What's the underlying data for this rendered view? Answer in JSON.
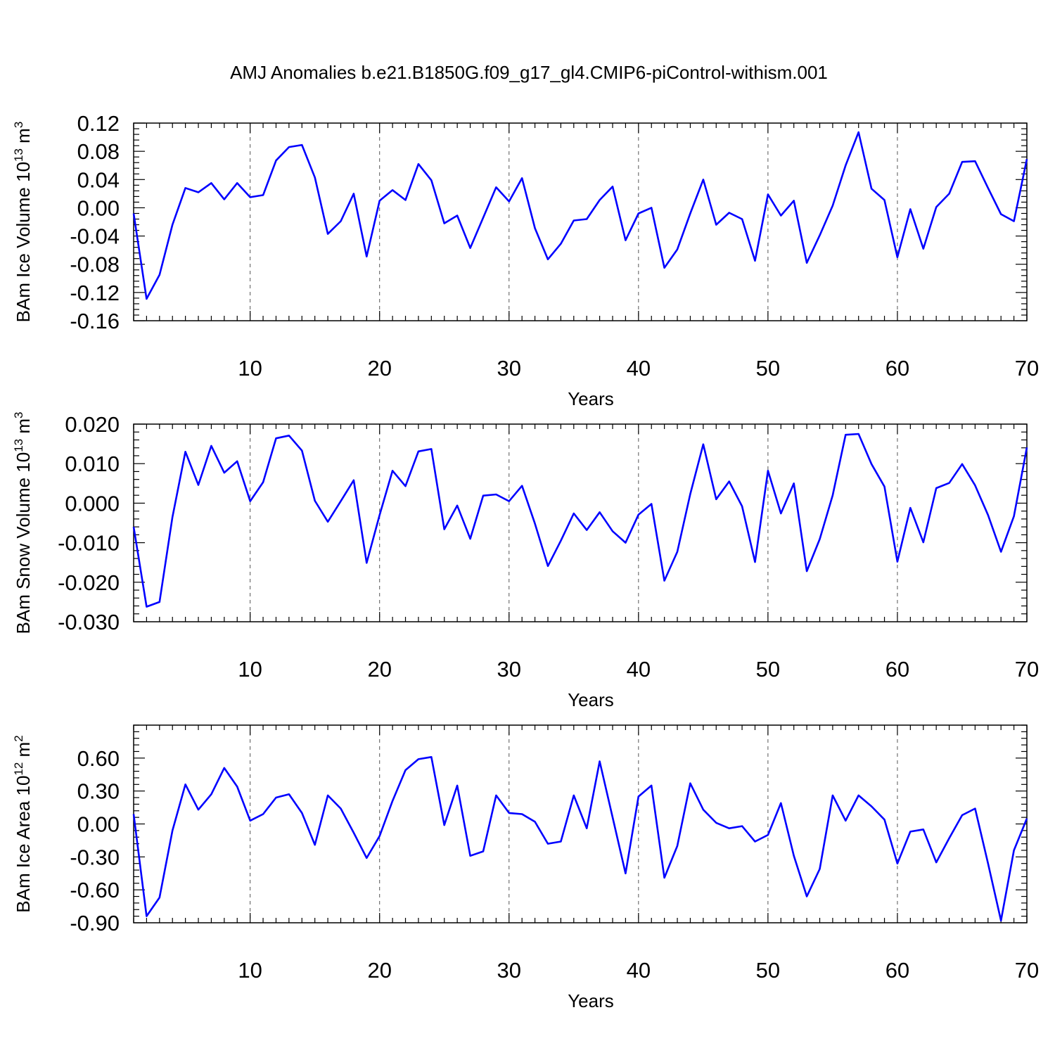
{
  "title": "AMJ Anomalies b.e21.B1850G.f09_g17_gl4.CMIP6-piControl-withism.001",
  "colors": {
    "line": "#0000ff",
    "axis": "#000000",
    "grid": "#555555"
  },
  "chart_data": [
    {
      "type": "line",
      "title": "",
      "xlabel": "Years",
      "ylabel": "BAm Ice Volume 10",
      "ylabel_exponent": "13",
      "ylabel_unit": "m",
      "ylabel_unit_exponent": "3",
      "xlim": [
        1,
        70
      ],
      "ylim": [
        -0.16,
        0.12
      ],
      "x_ticks": [
        10,
        20,
        30,
        40,
        50,
        60,
        70
      ],
      "x_tick_labels": [
        "10",
        "20",
        "30",
        "40",
        "50",
        "60",
        "70"
      ],
      "y_ticks": [
        -0.16,
        -0.12,
        -0.08,
        -0.04,
        0.0,
        0.04,
        0.08,
        0.12
      ],
      "y_tick_labels": [
        "-0.16",
        "-0.12",
        "-0.08",
        "-0.04",
        "0.00",
        "0.04",
        "0.08",
        "0.12"
      ],
      "grid": "vertical dashed at major x ticks",
      "x": [
        1,
        2,
        3,
        4,
        5,
        6,
        7,
        8,
        9,
        10,
        11,
        12,
        13,
        14,
        15,
        16,
        17,
        18,
        19,
        20,
        21,
        22,
        23,
        24,
        25,
        26,
        27,
        28,
        29,
        30,
        31,
        32,
        33,
        34,
        35,
        36,
        37,
        38,
        39,
        40,
        41,
        42,
        43,
        44,
        45,
        46,
        47,
        48,
        49,
        50,
        51,
        52,
        53,
        54,
        55,
        56,
        57,
        58,
        59,
        60,
        61,
        62,
        63,
        64,
        65,
        66,
        67,
        68,
        69,
        70
      ],
      "series": [
        {
          "values": [
            -0.008,
            -0.129,
            -0.095,
            -0.024,
            0.028,
            0.022,
            0.035,
            0.012,
            0.035,
            0.015,
            0.018,
            0.067,
            0.086,
            0.089,
            0.043,
            -0.037,
            -0.019,
            0.02,
            -0.069,
            0.01,
            0.025,
            0.011,
            0.062,
            0.039,
            -0.022,
            -0.011,
            -0.057,
            -0.014,
            0.029,
            0.009,
            0.042,
            -0.029,
            -0.073,
            -0.051,
            -0.018,
            -0.016,
            0.011,
            0.03,
            -0.046,
            -0.008,
            0.0,
            -0.085,
            -0.059,
            -0.008,
            0.04,
            -0.024,
            -0.007,
            -0.016,
            -0.075,
            0.019,
            -0.011,
            0.01,
            -0.078,
            -0.039,
            0.003,
            0.06,
            0.107,
            0.027,
            0.011,
            -0.07,
            -0.002,
            -0.058,
            0.001,
            0.02,
            0.065,
            0.066,
            0.028,
            -0.009,
            -0.019,
            0.069
          ]
        }
      ]
    },
    {
      "type": "line",
      "title": "",
      "xlabel": "Years",
      "ylabel": "BAm Snow Volume 10",
      "ylabel_exponent": "13",
      "ylabel_unit": "m",
      "ylabel_unit_exponent": "3",
      "xlim": [
        1,
        70
      ],
      "ylim": [
        -0.03,
        0.02
      ],
      "x_ticks": [
        10,
        20,
        30,
        40,
        50,
        60,
        70
      ],
      "x_tick_labels": [
        "10",
        "20",
        "30",
        "40",
        "50",
        "60",
        "70"
      ],
      "y_ticks": [
        -0.03,
        -0.02,
        -0.01,
        0.0,
        0.01,
        0.02
      ],
      "y_tick_labels": [
        "-0.030",
        "-0.020",
        "-0.010",
        "0.000",
        "0.010",
        "0.020"
      ],
      "grid": "vertical dashed at major x ticks",
      "x": [
        1,
        2,
        3,
        4,
        5,
        6,
        7,
        8,
        9,
        10,
        11,
        12,
        13,
        14,
        15,
        16,
        17,
        18,
        19,
        20,
        21,
        22,
        23,
        24,
        25,
        26,
        27,
        28,
        29,
        30,
        31,
        32,
        33,
        34,
        35,
        36,
        37,
        38,
        39,
        40,
        41,
        42,
        43,
        44,
        45,
        46,
        47,
        48,
        49,
        50,
        51,
        52,
        53,
        54,
        55,
        56,
        57,
        58,
        59,
        60,
        61,
        62,
        63,
        64,
        65,
        66,
        67,
        68,
        69,
        70
      ],
      "series": [
        {
          "values": [
            -0.006,
            -0.0262,
            -0.025,
            -0.0035,
            0.013,
            0.0046,
            0.0145,
            0.0077,
            0.0106,
            0.0005,
            0.0053,
            0.0164,
            0.0171,
            0.0133,
            0.0006,
            -0.0047,
            0.0005,
            0.0058,
            -0.0151,
            -0.003,
            0.0082,
            0.0043,
            0.0131,
            0.0137,
            -0.0066,
            -0.0006,
            -0.009,
            0.0019,
            0.0022,
            0.0005,
            0.0044,
            -0.0052,
            -0.0159,
            -0.0095,
            -0.0026,
            -0.0068,
            -0.0023,
            -0.0071,
            -0.01,
            -0.0029,
            -0.0002,
            -0.0196,
            -0.0123,
            0.0023,
            0.0149,
            0.001,
            0.0055,
            -0.0008,
            -0.0149,
            0.0082,
            -0.0026,
            0.005,
            -0.0172,
            -0.0091,
            0.002,
            0.0173,
            0.0175,
            0.0099,
            0.0042,
            -0.0148,
            -0.0012,
            -0.0099,
            0.0038,
            0.0051,
            0.0099,
            0.0045,
            -0.003,
            -0.0123,
            -0.0033,
            0.0141
          ]
        }
      ]
    },
    {
      "type": "line",
      "title": "",
      "xlabel": "Years",
      "ylabel": "BAm Ice Area 10",
      "ylabel_exponent": "12",
      "ylabel_unit": "m",
      "ylabel_unit_exponent": "2",
      "xlim": [
        1,
        70
      ],
      "ylim": [
        -0.9,
        0.9
      ],
      "x_ticks": [
        10,
        20,
        30,
        40,
        50,
        60,
        70
      ],
      "x_tick_labels": [
        "10",
        "20",
        "30",
        "40",
        "50",
        "60",
        "70"
      ],
      "y_ticks": [
        -0.9,
        -0.6,
        -0.3,
        0.0,
        0.3,
        0.6
      ],
      "y_tick_labels": [
        "-0.90",
        "-0.60",
        "-0.30",
        "0.00",
        "0.30",
        "0.60"
      ],
      "grid": "vertical dashed at major x ticks",
      "x": [
        1,
        2,
        3,
        4,
        5,
        6,
        7,
        8,
        9,
        10,
        11,
        12,
        13,
        14,
        15,
        16,
        17,
        18,
        19,
        20,
        21,
        22,
        23,
        24,
        25,
        26,
        27,
        28,
        29,
        30,
        31,
        32,
        33,
        34,
        35,
        36,
        37,
        38,
        39,
        40,
        41,
        42,
        43,
        44,
        45,
        46,
        47,
        48,
        49,
        50,
        51,
        52,
        53,
        54,
        55,
        56,
        57,
        58,
        59,
        60,
        61,
        62,
        63,
        64,
        65,
        66,
        67,
        68,
        69,
        70
      ],
      "series": [
        {
          "values": [
            0.09,
            -0.84,
            -0.67,
            -0.06,
            0.36,
            0.13,
            0.27,
            0.51,
            0.34,
            0.03,
            0.09,
            0.24,
            0.27,
            0.1,
            -0.19,
            0.26,
            0.14,
            -0.08,
            -0.31,
            -0.11,
            0.21,
            0.49,
            0.59,
            0.61,
            -0.01,
            0.35,
            -0.29,
            -0.25,
            0.26,
            0.1,
            0.09,
            0.02,
            -0.18,
            -0.16,
            0.26,
            -0.04,
            0.57,
            0.06,
            -0.45,
            0.25,
            0.35,
            -0.49,
            -0.2,
            0.37,
            0.13,
            0.01,
            -0.04,
            -0.02,
            -0.16,
            -0.1,
            0.19,
            -0.29,
            -0.66,
            -0.41,
            0.26,
            0.03,
            0.26,
            0.16,
            0.04,
            -0.36,
            -0.07,
            -0.05,
            -0.35,
            -0.13,
            0.08,
            0.14,
            -0.36,
            -0.88,
            -0.24,
            0.05
          ]
        }
      ]
    }
  ]
}
